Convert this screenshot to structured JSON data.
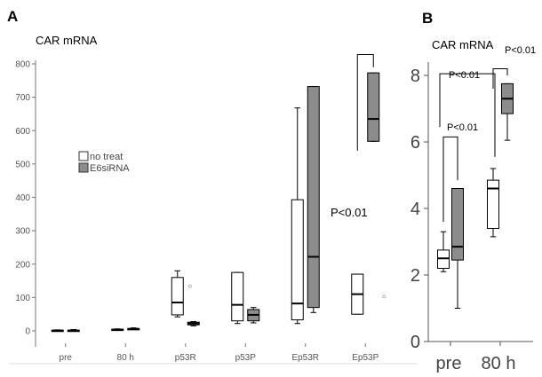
{
  "colors": {
    "no_treat": "#ffffff",
    "e6sirna": "#8c8c8c",
    "axis": "#555555",
    "line": "#000000"
  },
  "chart_data": [
    {
      "panel_label": "A",
      "type": "boxplot",
      "title": "CAR mRNA",
      "categories": [
        "pre",
        "80 h",
        "p53R",
        "p53P",
        "Ep53R",
        "Ep53P"
      ],
      "ylim": [
        0,
        800
      ],
      "yticks": [
        "0",
        "100",
        "200",
        "300",
        "400",
        "500",
        "600",
        "700",
        "800"
      ],
      "legend": {
        "placement": "middle-left",
        "entries": [
          "no treat",
          "E6siRNA"
        ]
      },
      "series": [
        {
          "name": "no treat",
          "boxes": [
            {
              "min": 0,
              "q1": 0,
              "median": 1,
              "q3": 2,
              "max": 3
            },
            {
              "min": 3,
              "q1": 3,
              "median": 4,
              "q3": 5,
              "max": 6
            },
            {
              "min": 42,
              "q1": 48,
              "median": 85,
              "q3": 160,
              "max": 180
            },
            {
              "min": 22,
              "q1": 30,
              "median": 78,
              "q3": 175,
              "max": 175
            },
            {
              "min": 22,
              "q1": 33,
              "median": 82,
              "q3": 393,
              "max": 668
            },
            {
              "min": 50,
              "q1": 50,
              "median": 110,
              "q3": 170,
              "max": 170
            }
          ],
          "outliers": [
            {
              "category": "p53R",
              "value": 134
            },
            {
              "category": "Ep53P",
              "value": 672
            }
          ]
        },
        {
          "name": "E6siRNA",
          "boxes": [
            {
              "min": 0,
              "q1": 0,
              "median": 1,
              "q3": 2,
              "max": 4
            },
            {
              "min": 4,
              "q1": 5,
              "median": 6,
              "q3": 7,
              "max": 9
            },
            {
              "min": 15,
              "q1": 18,
              "median": 22,
              "q3": 26,
              "max": 28
            },
            {
              "min": 24,
              "q1": 30,
              "median": 48,
              "q3": 64,
              "max": 70
            },
            {
              "min": 55,
              "q1": 70,
              "median": 222,
              "q3": 732,
              "max": 732
            },
            {
              "min": 568,
              "q1": 568,
              "median": 635,
              "q3": 773,
              "max": 773
            }
          ],
          "outliers": [
            {
              "category": "Ep53P",
              "value": 103
            }
          ]
        }
      ],
      "annotations": [
        {
          "text": "P<0.01",
          "between": [
            "Ep53P no treat",
            "Ep53P E6siRNA"
          ]
        }
      ]
    },
    {
      "panel_label": "B",
      "type": "boxplot",
      "title": "CAR mRNA",
      "categories": [
        "pre",
        "80 h"
      ],
      "ylim": [
        0,
        8.4
      ],
      "yticks": [
        "0",
        "2",
        "4",
        "6",
        "8"
      ],
      "series": [
        {
          "name": "no treat",
          "boxes": [
            {
              "min": 2.1,
              "q1": 2.2,
              "median": 2.5,
              "q3": 2.75,
              "max": 3.3
            },
            {
              "min": 3.15,
              "q1": 3.4,
              "median": 4.6,
              "q3": 4.85,
              "max": 5.2
            }
          ]
        },
        {
          "name": "E6siRNA",
          "boxes": [
            {
              "min": 1.0,
              "q1": 2.45,
              "median": 2.85,
              "q3": 4.6,
              "max": 4.6
            },
            {
              "min": 6.05,
              "q1": 6.85,
              "median": 7.3,
              "q3": 7.75,
              "max": 7.75
            }
          ]
        }
      ],
      "annotations": [
        {
          "text": "P<0.01",
          "between": [
            "pre no treat",
            "pre E6siRNA"
          ]
        },
        {
          "text": "P<0.01",
          "between": [
            "pre",
            "80 h"
          ]
        },
        {
          "text": "P<0.01",
          "between": [
            "80 h no treat",
            "80 h E6siRNA"
          ]
        }
      ]
    }
  ]
}
